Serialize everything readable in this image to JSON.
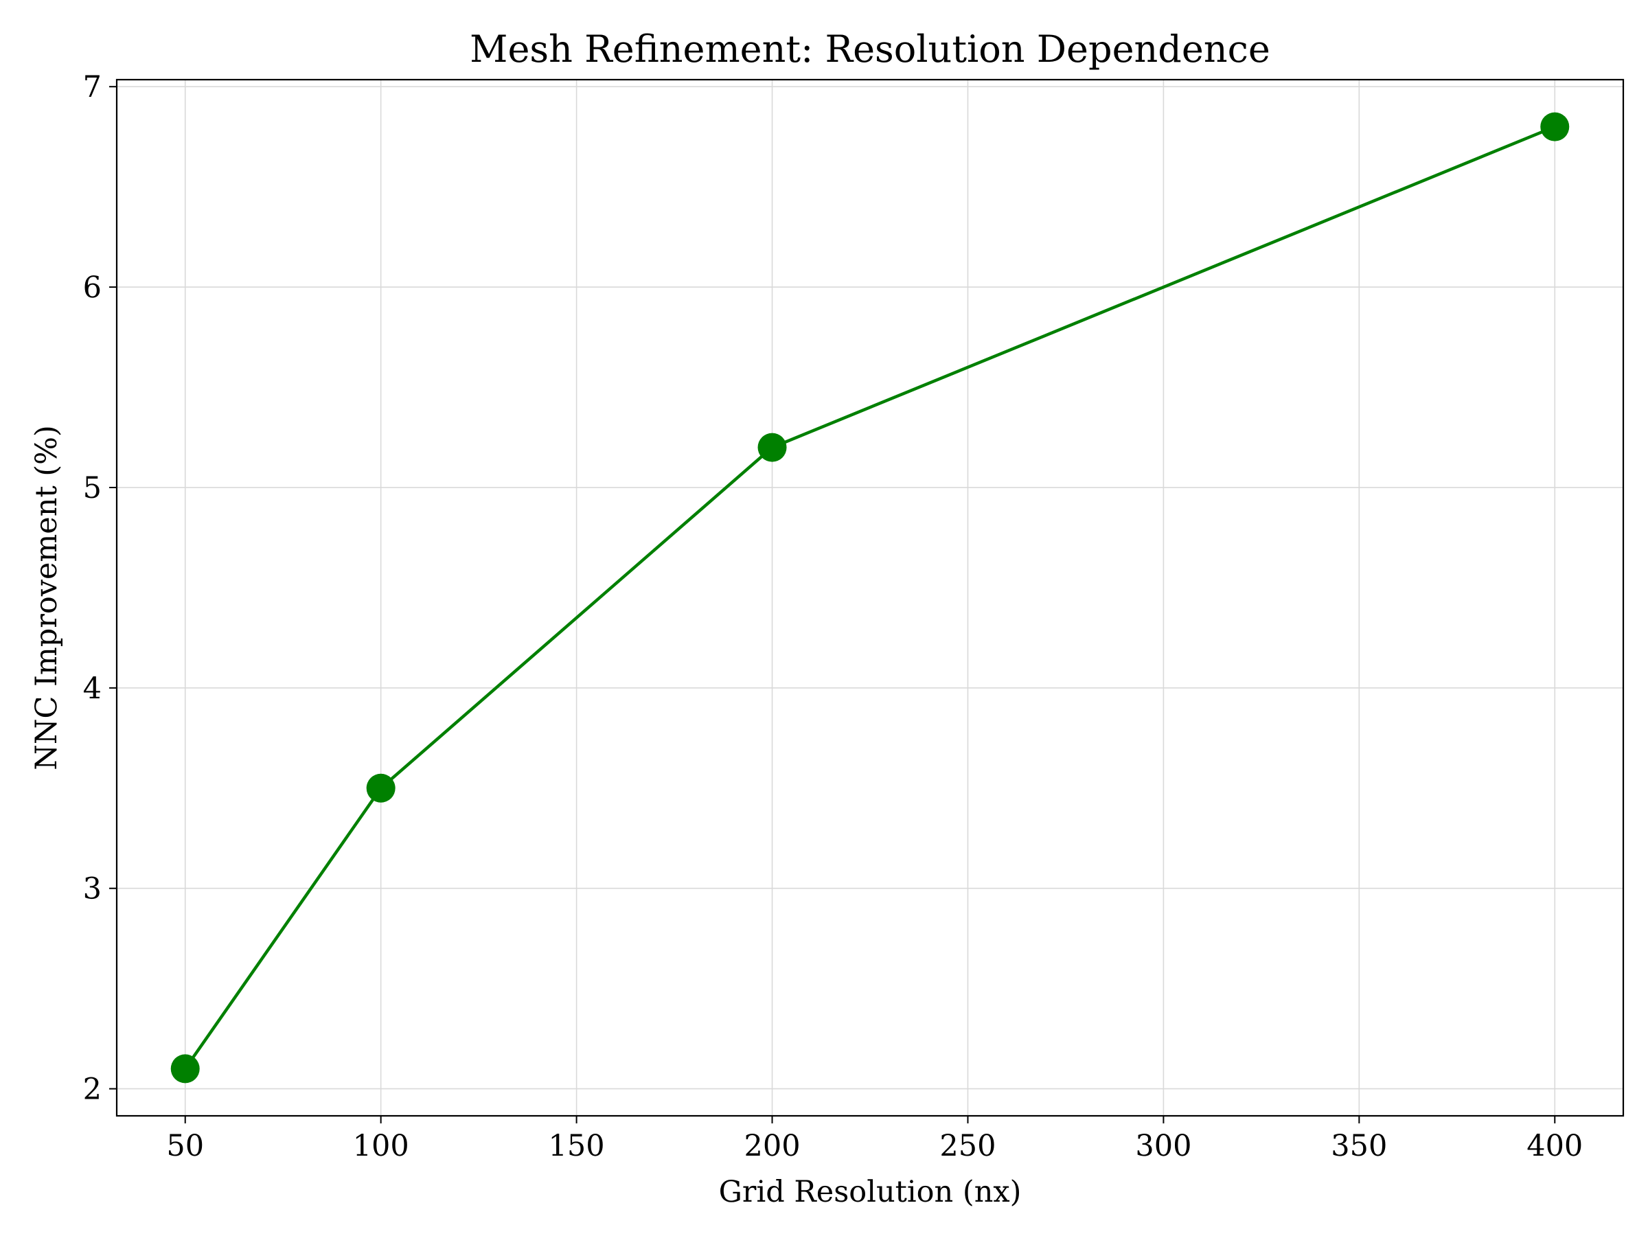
{
  "chart_data": {
    "type": "line",
    "title": "Mesh Refinement: Resolution Dependence",
    "xlabel": "Grid Resolution (nx)",
    "ylabel": "NNC Improvement (%)",
    "xlim": [
      32.5,
      417.5
    ],
    "ylim": [
      1.865,
      7.035
    ],
    "xticks": [
      50,
      100,
      150,
      200,
      250,
      300,
      350,
      400
    ],
    "yticks": [
      2,
      3,
      4,
      5,
      6,
      7
    ],
    "grid": true,
    "series": [
      {
        "color": "#008000",
        "marker": "circle",
        "x": [
          50,
          100,
          200,
          400
        ],
        "y": [
          2.1,
          3.5,
          5.2,
          6.8
        ]
      }
    ]
  }
}
